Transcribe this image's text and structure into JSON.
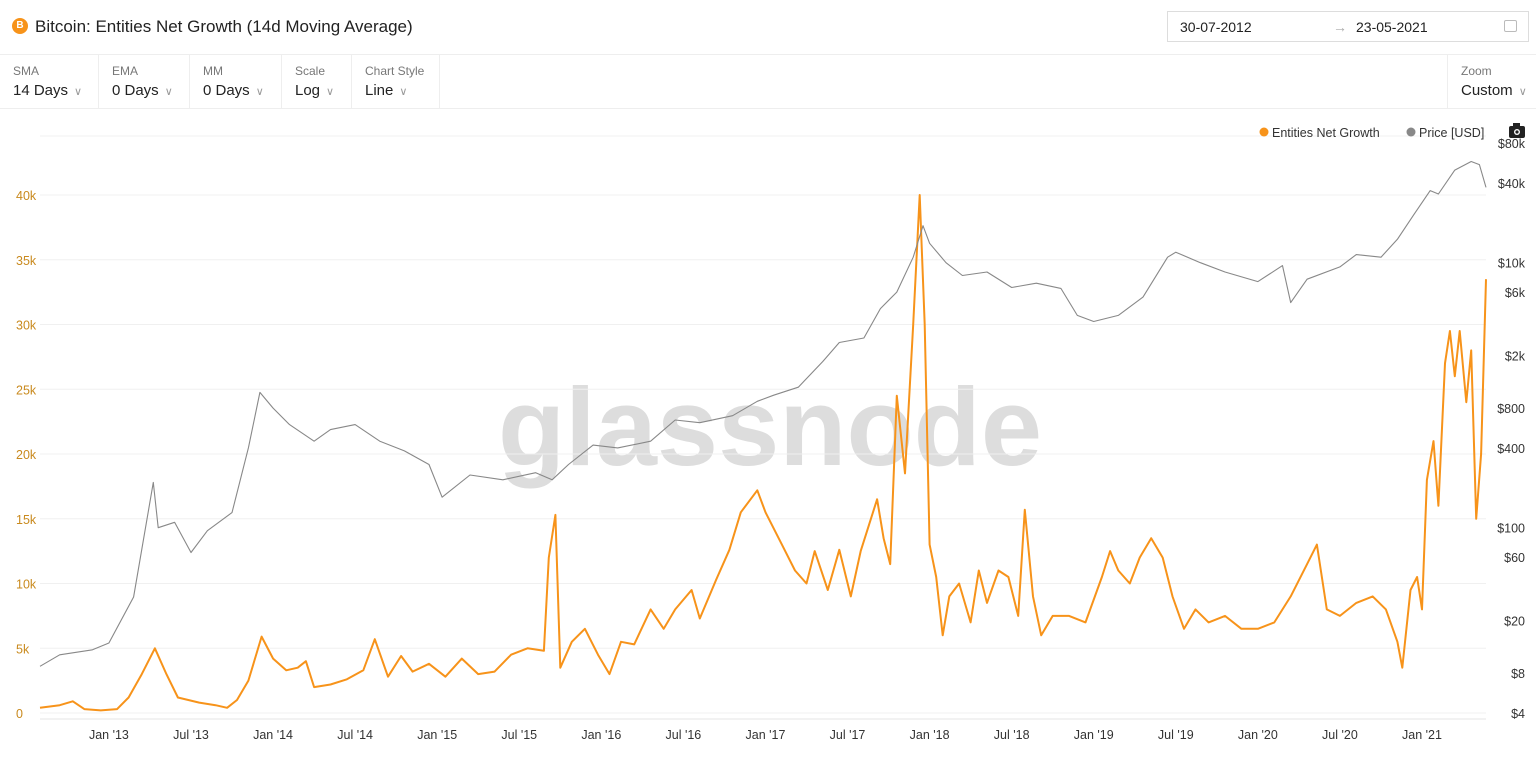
{
  "header": {
    "title": "Bitcoin: Entities Net Growth (14d Moving Average)",
    "btc_icon": "B",
    "date_from": "30-07-2012",
    "date_to": "23-05-2021",
    "arrow": "→"
  },
  "controls": [
    {
      "label": "SMA",
      "value": "14 Days"
    },
    {
      "label": "EMA",
      "value": "0 Days"
    },
    {
      "label": "MM",
      "value": "0 Days"
    },
    {
      "label": "Scale",
      "value": "Log"
    },
    {
      "label": "Chart Style",
      "value": "Line"
    }
  ],
  "zoom": {
    "label": "Zoom",
    "value": "Custom"
  },
  "chevron": "∨",
  "watermark": "glassnode",
  "chart_data": {
    "type": "line",
    "title": "Bitcoin: Entities Net Growth (14d Moving Average)",
    "legend": [
      {
        "name": "Entities Net Growth",
        "color": "#f7931a"
      },
      {
        "name": "Price [USD]",
        "color": "#888888"
      }
    ],
    "legend_position": "top-right",
    "x_ticks": [
      "Jan '13",
      "Jul '13",
      "Jan '14",
      "Jul '14",
      "Jan '15",
      "Jul '15",
      "Jan '16",
      "Jul '16",
      "Jan '17",
      "Jul '17",
      "Jan '18",
      "Jul '18",
      "Jan '19",
      "Jul '19",
      "Jan '20",
      "Jul '20",
      "Jan '21"
    ],
    "x_tick_years": [
      2013,
      2013.5,
      2014,
      2014.5,
      2015,
      2015.5,
      2016,
      2016.5,
      2017,
      2017.5,
      2018,
      2018.5,
      2019,
      2019.5,
      2020,
      2020.5,
      2021
    ],
    "xlim": [
      2012.58,
      2021.39
    ],
    "y_left": {
      "ticks": [
        "0",
        "5k",
        "10k",
        "15k",
        "20k",
        "25k",
        "30k",
        "35k",
        "40k"
      ],
      "tick_values": [
        0,
        5,
        10,
        15,
        20,
        25,
        30,
        35,
        40
      ],
      "ylim": [
        0,
        40
      ],
      "unit": "thousands",
      "color": "#c98a1e"
    },
    "y_right": {
      "scale": "log",
      "ticks": [
        "$4",
        "$8",
        "$20",
        "$60",
        "$100",
        "$400",
        "$800",
        "$2k",
        "$6k",
        "$10k",
        "$40k",
        "$80k"
      ],
      "tick_values": [
        4,
        8,
        20,
        60,
        100,
        400,
        800,
        2000,
        6000,
        10000,
        40000,
        80000
      ],
      "ylim": [
        4,
        80000
      ]
    },
    "series": [
      {
        "name": "Entities Net Growth",
        "axis": "left",
        "points": [
          [
            2012.58,
            0.4
          ],
          [
            2012.7,
            0.6
          ],
          [
            2012.78,
            0.9
          ],
          [
            2012.85,
            0.3
          ],
          [
            2012.95,
            0.2
          ],
          [
            2013.05,
            0.3
          ],
          [
            2013.12,
            1.2
          ],
          [
            2013.2,
            3
          ],
          [
            2013.28,
            5
          ],
          [
            2013.35,
            3
          ],
          [
            2013.42,
            1.2
          ],
          [
            2013.55,
            0.8
          ],
          [
            2013.65,
            0.6
          ],
          [
            2013.72,
            0.4
          ],
          [
            2013.78,
            1
          ],
          [
            2013.85,
            2.5
          ],
          [
            2013.93,
            5.9
          ],
          [
            2014.0,
            4.2
          ],
          [
            2014.08,
            3.3
          ],
          [
            2014.15,
            3.5
          ],
          [
            2014.2,
            4
          ],
          [
            2014.25,
            2
          ],
          [
            2014.35,
            2.2
          ],
          [
            2014.45,
            2.6
          ],
          [
            2014.55,
            3.3
          ],
          [
            2014.62,
            5.7
          ],
          [
            2014.7,
            2.8
          ],
          [
            2014.78,
            4.4
          ],
          [
            2014.85,
            3.2
          ],
          [
            2014.95,
            3.8
          ],
          [
            2015.05,
            2.8
          ],
          [
            2015.15,
            4.2
          ],
          [
            2015.25,
            3
          ],
          [
            2015.35,
            3.2
          ],
          [
            2015.45,
            4.5
          ],
          [
            2015.55,
            5
          ],
          [
            2015.65,
            4.8
          ],
          [
            2015.68,
            12
          ],
          [
            2015.72,
            15.3
          ],
          [
            2015.75,
            3.5
          ],
          [
            2015.82,
            5.5
          ],
          [
            2015.9,
            6.5
          ],
          [
            2015.98,
            4.5
          ],
          [
            2016.05,
            3
          ],
          [
            2016.12,
            5.5
          ],
          [
            2016.2,
            5.3
          ],
          [
            2016.3,
            8
          ],
          [
            2016.38,
            6.5
          ],
          [
            2016.45,
            8
          ],
          [
            2016.55,
            9.5
          ],
          [
            2016.6,
            7.3
          ],
          [
            2016.7,
            10.3
          ],
          [
            2016.78,
            12.6
          ],
          [
            2016.85,
            15.5
          ],
          [
            2016.95,
            17.2
          ],
          [
            2017.0,
            15.5
          ],
          [
            2017.1,
            13
          ],
          [
            2017.18,
            11
          ],
          [
            2017.25,
            10
          ],
          [
            2017.3,
            12.5
          ],
          [
            2017.38,
            9.5
          ],
          [
            2017.45,
            12.6
          ],
          [
            2017.52,
            9
          ],
          [
            2017.58,
            12.5
          ],
          [
            2017.63,
            14.5
          ],
          [
            2017.68,
            16.5
          ],
          [
            2017.72,
            13.5
          ],
          [
            2017.76,
            11.5
          ],
          [
            2017.8,
            24.5
          ],
          [
            2017.85,
            18.5
          ],
          [
            2017.9,
            30
          ],
          [
            2017.94,
            40
          ],
          [
            2017.97,
            30
          ],
          [
            2018.0,
            13
          ],
          [
            2018.04,
            10.5
          ],
          [
            2018.08,
            6
          ],
          [
            2018.12,
            9
          ],
          [
            2018.18,
            10
          ],
          [
            2018.25,
            7
          ],
          [
            2018.3,
            11
          ],
          [
            2018.35,
            8.5
          ],
          [
            2018.42,
            11
          ],
          [
            2018.48,
            10.5
          ],
          [
            2018.54,
            7.5
          ],
          [
            2018.58,
            15.7
          ],
          [
            2018.63,
            9
          ],
          [
            2018.68,
            6
          ],
          [
            2018.75,
            7.5
          ],
          [
            2018.85,
            7.5
          ],
          [
            2018.95,
            7
          ],
          [
            2019.05,
            10.5
          ],
          [
            2019.1,
            12.5
          ],
          [
            2019.15,
            11
          ],
          [
            2019.22,
            10
          ],
          [
            2019.28,
            12
          ],
          [
            2019.35,
            13.5
          ],
          [
            2019.42,
            12
          ],
          [
            2019.48,
            9
          ],
          [
            2019.55,
            6.5
          ],
          [
            2019.62,
            8
          ],
          [
            2019.7,
            7
          ],
          [
            2019.8,
            7.5
          ],
          [
            2019.9,
            6.5
          ],
          [
            2020.0,
            6.5
          ],
          [
            2020.1,
            7
          ],
          [
            2020.2,
            9
          ],
          [
            2020.3,
            11.5
          ],
          [
            2020.36,
            13
          ],
          [
            2020.42,
            8
          ],
          [
            2020.5,
            7.5
          ],
          [
            2020.6,
            8.5
          ],
          [
            2020.7,
            9
          ],
          [
            2020.78,
            8
          ],
          [
            2020.85,
            5.5
          ],
          [
            2020.88,
            3.5
          ],
          [
            2020.93,
            9.5
          ],
          [
            2020.97,
            10.5
          ],
          [
            2021.0,
            8
          ],
          [
            2021.03,
            18
          ],
          [
            2021.07,
            21
          ],
          [
            2021.1,
            16
          ],
          [
            2021.14,
            27
          ],
          [
            2021.17,
            29.5
          ],
          [
            2021.2,
            26
          ],
          [
            2021.23,
            29.5
          ],
          [
            2021.27,
            24
          ],
          [
            2021.3,
            28
          ],
          [
            2021.33,
            15
          ],
          [
            2021.36,
            20
          ],
          [
            2021.39,
            33.5
          ]
        ]
      },
      {
        "name": "Price [USD]",
        "axis": "right",
        "points": [
          [
            2012.58,
            9
          ],
          [
            2012.7,
            11
          ],
          [
            2012.9,
            12
          ],
          [
            2013.0,
            13.5
          ],
          [
            2013.15,
            30
          ],
          [
            2013.27,
            220
          ],
          [
            2013.3,
            100
          ],
          [
            2013.4,
            110
          ],
          [
            2013.5,
            65
          ],
          [
            2013.6,
            95
          ],
          [
            2013.75,
            130
          ],
          [
            2013.85,
            400
          ],
          [
            2013.92,
            1050
          ],
          [
            2014.0,
            800
          ],
          [
            2014.1,
            600
          ],
          [
            2014.25,
            450
          ],
          [
            2014.35,
            550
          ],
          [
            2014.5,
            600
          ],
          [
            2014.65,
            450
          ],
          [
            2014.8,
            380
          ],
          [
            2014.95,
            300
          ],
          [
            2015.03,
            170
          ],
          [
            2015.2,
            250
          ],
          [
            2015.4,
            230
          ],
          [
            2015.6,
            260
          ],
          [
            2015.7,
            230
          ],
          [
            2015.8,
            300
          ],
          [
            2015.95,
            420
          ],
          [
            2016.1,
            400
          ],
          [
            2016.3,
            450
          ],
          [
            2016.45,
            650
          ],
          [
            2016.6,
            620
          ],
          [
            2016.8,
            700
          ],
          [
            2016.95,
            900
          ],
          [
            2017.05,
            1000
          ],
          [
            2017.2,
            1150
          ],
          [
            2017.35,
            1800
          ],
          [
            2017.45,
            2500
          ],
          [
            2017.6,
            2700
          ],
          [
            2017.7,
            4500
          ],
          [
            2017.8,
            6000
          ],
          [
            2017.9,
            11000
          ],
          [
            2017.96,
            19000
          ],
          [
            2018.0,
            14000
          ],
          [
            2018.1,
            10000
          ],
          [
            2018.2,
            8000
          ],
          [
            2018.35,
            8500
          ],
          [
            2018.5,
            6500
          ],
          [
            2018.65,
            7000
          ],
          [
            2018.8,
            6400
          ],
          [
            2018.9,
            4000
          ],
          [
            2019.0,
            3600
          ],
          [
            2019.15,
            4000
          ],
          [
            2019.3,
            5500
          ],
          [
            2019.45,
            11000
          ],
          [
            2019.5,
            12000
          ],
          [
            2019.65,
            10000
          ],
          [
            2019.8,
            8500
          ],
          [
            2020.0,
            7200
          ],
          [
            2020.15,
            9500
          ],
          [
            2020.2,
            5000
          ],
          [
            2020.3,
            7500
          ],
          [
            2020.5,
            9300
          ],
          [
            2020.6,
            11500
          ],
          [
            2020.75,
            11000
          ],
          [
            2020.85,
            15000
          ],
          [
            2020.95,
            23000
          ],
          [
            2021.05,
            35000
          ],
          [
            2021.1,
            33000
          ],
          [
            2021.2,
            50000
          ],
          [
            2021.3,
            58000
          ],
          [
            2021.35,
            55000
          ],
          [
            2021.39,
            37000
          ]
        ]
      }
    ]
  }
}
